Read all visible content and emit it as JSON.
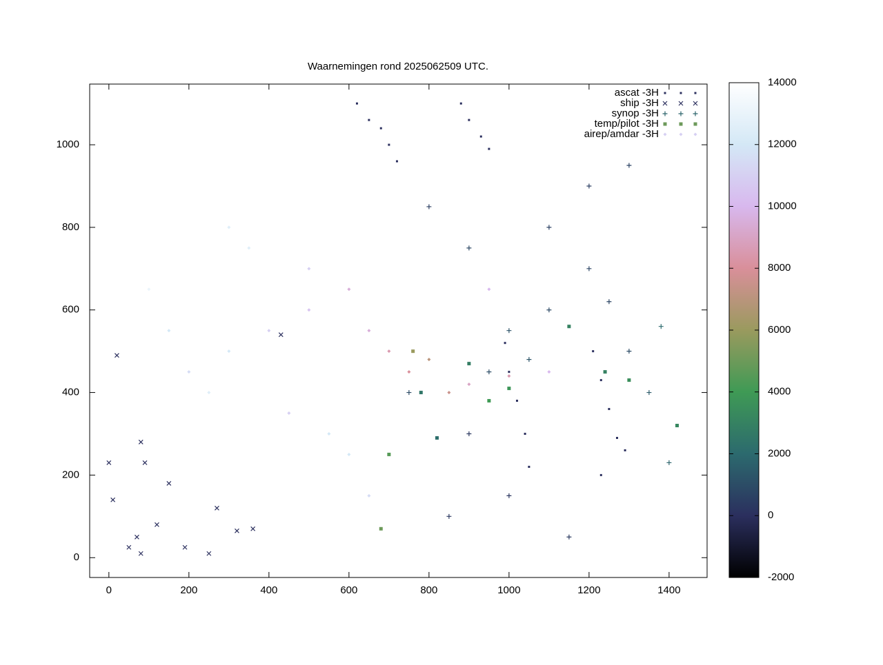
{
  "chart_data": {
    "type": "scatter",
    "title": "Waarnemingen rond 2025062509 UTC.",
    "xlim": [
      -48,
      1495
    ],
    "ylim": [
      -48,
      1147
    ],
    "xticks": [
      0,
      200,
      400,
      600,
      800,
      1000,
      1200,
      1400
    ],
    "yticks": [
      0,
      200,
      400,
      600,
      800,
      1000
    ],
    "legend": "top-right",
    "colorbar": {
      "lim": [
        -2000,
        14000
      ],
      "ticks": [
        -2000,
        0,
        2000,
        4000,
        6000,
        8000,
        10000,
        12000,
        14000
      ],
      "colors": [
        "#000000",
        "#2b2f5e",
        "#2c6a6e",
        "#3f9a55",
        "#9a9a5e",
        "#d98f9a",
        "#d8b8ee",
        "#d4e8f6",
        "#ffffff"
      ]
    },
    "series": [
      {
        "name": "ascat -3H",
        "marker": "dot",
        "x": [
          620,
          650,
          680,
          700,
          720,
          880,
          900,
          930,
          950,
          990,
          1000,
          1020,
          1040,
          1050,
          1210,
          1230,
          1250,
          1270,
          1230,
          1290
        ],
        "values": [
          1100,
          1060,
          1040,
          1000,
          960,
          1100,
          1060,
          1020,
          990,
          520,
          450,
          380,
          300,
          220,
          500,
          430,
          360,
          290,
          200,
          260
        ],
        "z": [
          0,
          0,
          0,
          0,
          0,
          0,
          0,
          0,
          0,
          0,
          0,
          0,
          0,
          0,
          0,
          0,
          0,
          0,
          0,
          0
        ]
      },
      {
        "name": "ship -3H",
        "marker": "x",
        "x": [
          0,
          10,
          50,
          80,
          90,
          80,
          190,
          270,
          320,
          360,
          430,
          250,
          150,
          70,
          120,
          20
        ],
        "values": [
          230,
          140,
          25,
          10,
          230,
          280,
          25,
          120,
          65,
          70,
          540,
          10,
          180,
          50,
          80,
          490
        ],
        "z": [
          0,
          0,
          0,
          0,
          0,
          0,
          0,
          0,
          0,
          0,
          0,
          0,
          0,
          0,
          0,
          0
        ]
      },
      {
        "name": "synop -3H",
        "marker": "plus",
        "x": [
          800,
          900,
          1100,
          1200,
          1000,
          1300,
          1350,
          900,
          1000,
          1150,
          1400,
          750,
          850,
          1200,
          1300,
          1100,
          950,
          1050,
          1250,
          1380
        ],
        "values": [
          850,
          750,
          800,
          700,
          550,
          500,
          400,
          300,
          150,
          50,
          230,
          400,
          100,
          900,
          950,
          600,
          450,
          480,
          620,
          560
        ],
        "z": [
          500,
          800,
          600,
          700,
          1200,
          900,
          1500,
          300,
          200,
          400,
          1800,
          900,
          300,
          500,
          600,
          800,
          1000,
          1300,
          700,
          2000
        ]
      },
      {
        "name": "temp/pilot -3H",
        "marker": "square",
        "x": [
          1240,
          1300,
          780,
          950,
          1420,
          700,
          680,
          900,
          1000,
          760,
          1150,
          820
        ],
        "values": [
          450,
          430,
          400,
          380,
          320,
          250,
          70,
          470,
          410,
          500,
          560,
          290
        ],
        "z": [
          3000,
          3500,
          2500,
          4000,
          3200,
          4500,
          5000,
          2800,
          3800,
          6000,
          3000,
          2200
        ]
      },
      {
        "name": "airep/amdar -3H",
        "marker": "diamond",
        "x": [
          200,
          300,
          400,
          500,
          350,
          600,
          700,
          750,
          850,
          950,
          650,
          550,
          450,
          250,
          150,
          300,
          100,
          800,
          900,
          1000,
          1100,
          650,
          500,
          600
        ],
        "values": [
          450,
          500,
          550,
          600,
          750,
          650,
          500,
          450,
          400,
          650,
          150,
          300,
          350,
          400,
          550,
          800,
          650,
          480,
          420,
          440,
          450,
          550,
          700,
          250
        ],
        "z": [
          11500,
          12000,
          11000,
          10500,
          12500,
          9500,
          8500,
          8000,
          7500,
          10000,
          11500,
          12000,
          11000,
          12500,
          12000,
          12500,
          13000,
          7000,
          9000,
          8500,
          10000,
          9500,
          11000,
          12000
        ]
      }
    ]
  }
}
